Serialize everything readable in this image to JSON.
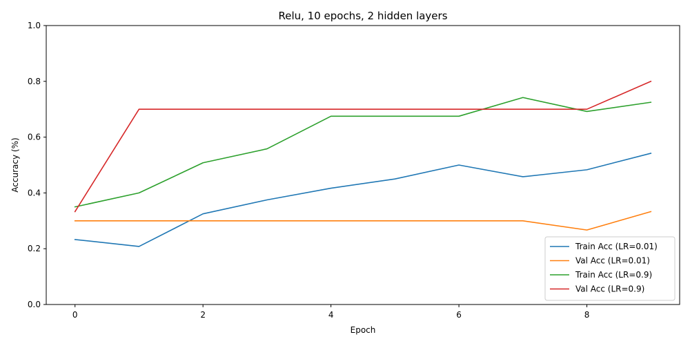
{
  "chart_data": {
    "type": "line",
    "title": "Relu, 10 epochs, 2 hidden layers",
    "xlabel": "Epoch",
    "ylabel": "Accuracy (%)",
    "x": [
      0,
      1,
      2,
      3,
      4,
      5,
      6,
      7,
      8,
      9
    ],
    "xlim": [
      -0.45,
      9.45
    ],
    "ylim": [
      0.0,
      1.0
    ],
    "xticks": [
      0,
      2,
      4,
      6,
      8
    ],
    "xtick_labels": [
      "0",
      "2",
      "4",
      "6",
      "8"
    ],
    "yticks": [
      0.0,
      0.2,
      0.4,
      0.6,
      0.8,
      1.0
    ],
    "ytick_labels": [
      "0.0",
      "0.2",
      "0.4",
      "0.6",
      "0.8",
      "1.0"
    ],
    "grid": false,
    "legend_position": "lower-right",
    "series": [
      {
        "name": "Train Acc (LR=0.01)",
        "color": "#1f77b4",
        "values": [
          0.233,
          0.208,
          0.325,
          0.375,
          0.417,
          0.45,
          0.5,
          0.458,
          0.483,
          0.542
        ]
      },
      {
        "name": "Val Acc (LR=0.01)",
        "color": "#ff7f0e",
        "values": [
          0.3,
          0.3,
          0.3,
          0.3,
          0.3,
          0.3,
          0.3,
          0.3,
          0.267,
          0.333
        ]
      },
      {
        "name": "Train Acc (LR=0.9)",
        "color": "#2ca02c",
        "values": [
          0.35,
          0.4,
          0.508,
          0.558,
          0.675,
          0.675,
          0.675,
          0.742,
          0.692,
          0.725
        ]
      },
      {
        "name": "Val Acc (LR=0.9)",
        "color": "#d62728",
        "values": [
          0.333,
          0.7,
          0.7,
          0.7,
          0.7,
          0.7,
          0.7,
          0.7,
          0.7,
          0.8
        ]
      }
    ]
  }
}
